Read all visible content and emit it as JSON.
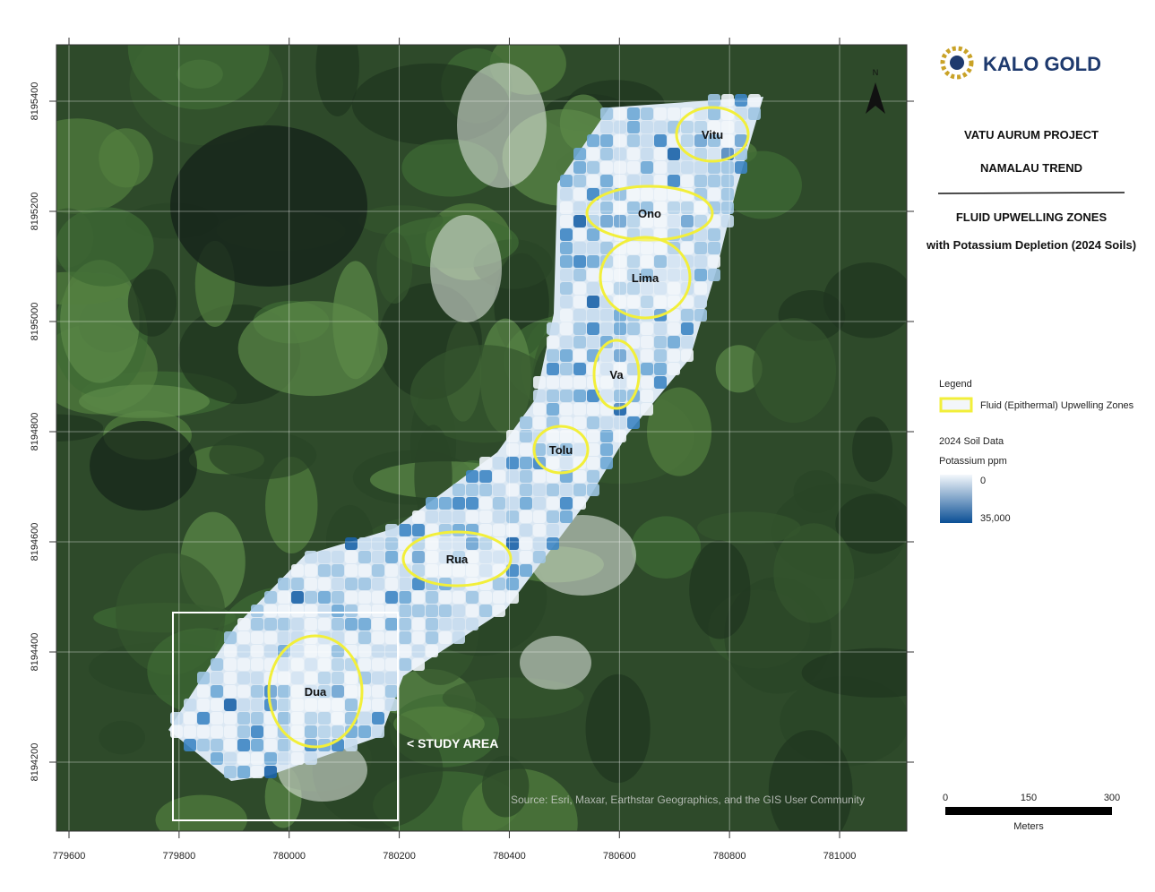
{
  "brand": "KALO GOLD",
  "north": "N",
  "header": {
    "project": "VATU AURUM PROJECT",
    "trend": "NAMALAU TREND",
    "subtitle": "FLUID UPWELLING ZONES",
    "subtitle2": "with Potassium Depletion (2024 Soils)"
  },
  "legend": {
    "title": "Legend",
    "zone_label": "Fluid (Epithermal) Upwelling Zones",
    "soil_title": "2024 Soil Data",
    "soil_unit": "Potassium ppm",
    "soil_min": "0",
    "soil_max": "35,000"
  },
  "map": {
    "xticks": [
      779600,
      779800,
      780000,
      780200,
      780400,
      780600,
      780800,
      781000
    ],
    "yticks": [
      8194200,
      8194400,
      8194600,
      8194800,
      8195000,
      8195200,
      8195400
    ],
    "zones": [
      {
        "label": "Vitu"
      },
      {
        "label": "Ono"
      },
      {
        "label": "Lima"
      },
      {
        "label": "Va"
      },
      {
        "label": "Tolu"
      },
      {
        "label": "Rua"
      },
      {
        "label": "Dua"
      }
    ],
    "study_area": "< STUDY AREA",
    "source": "Source: Esri, Maxar, Earthstar Geographics, and the GIS User Community"
  },
  "scale": {
    "ticks": [
      0,
      150,
      300
    ],
    "unit": "Meters"
  }
}
